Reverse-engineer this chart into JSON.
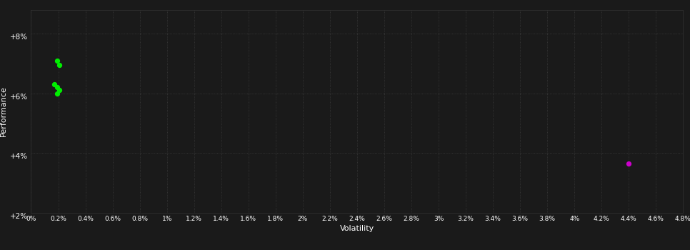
{
  "title": "",
  "xlabel": "Volatility",
  "ylabel": "Performance",
  "background_color": "#1a1a1a",
  "grid_color": "#4a4a4a",
  "text_color": "#ffffff",
  "xlim": [
    0,
    0.048
  ],
  "ylim": [
    0.02,
    0.088
  ],
  "xticks": [
    0,
    0.002,
    0.004,
    0.006,
    0.008,
    0.01,
    0.012,
    0.014,
    0.016,
    0.018,
    0.02,
    0.022,
    0.024,
    0.026,
    0.028,
    0.03,
    0.032,
    0.034,
    0.036,
    0.038,
    0.04,
    0.042,
    0.044,
    0.046,
    0.048
  ],
  "xtick_labels": [
    "0%",
    "0.2%",
    "0.4%",
    "0.6%",
    "0.8%",
    "1%",
    "1.2%",
    "1.4%",
    "1.6%",
    "1.8%",
    "2%",
    "2.2%",
    "2.4%",
    "2.6%",
    "2.8%",
    "3%",
    "3.2%",
    "3.4%",
    "3.6%",
    "3.8%",
    "4%",
    "4.2%",
    "4.4%",
    "4.6%",
    "4.8%"
  ],
  "yticks": [
    0.02,
    0.04,
    0.06,
    0.08
  ],
  "ytick_labels": [
    "+2%",
    "+4%",
    "+6%",
    "+8%"
  ],
  "green_points": [
    [
      0.0019,
      0.071
    ],
    [
      0.0021,
      0.0695
    ],
    [
      0.0017,
      0.063
    ],
    [
      0.0019,
      0.0622
    ],
    [
      0.0021,
      0.0612
    ],
    [
      0.0019,
      0.06
    ]
  ],
  "green_color": "#00ee00",
  "magenta_points": [
    [
      0.044,
      0.0365
    ]
  ],
  "magenta_color": "#cc00cc",
  "point_size": 18
}
